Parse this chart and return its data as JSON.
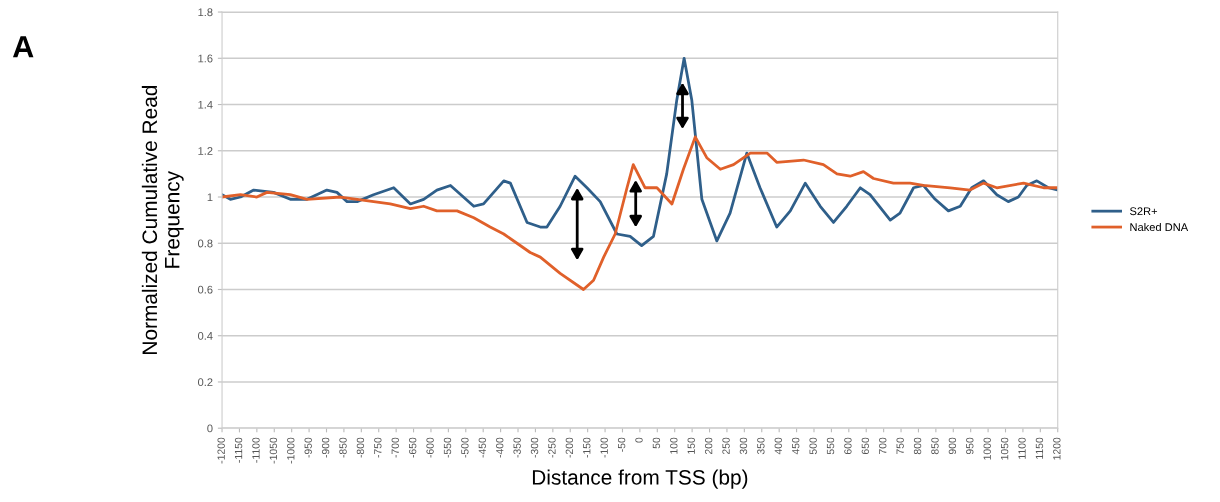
{
  "chart_data": {
    "type": "line",
    "xlabel": "Distance from TSS (bp)",
    "ylabel": "Normalized Cumulative Read\nFrequency",
    "annotations": [
      "A"
    ],
    "xlim": [
      -1200,
      1200
    ],
    "ylim": [
      0,
      1.8
    ],
    "xticks": [
      -1200,
      -1150,
      -1100,
      -1050,
      -1000,
      -950,
      -900,
      -850,
      -800,
      -750,
      -700,
      -650,
      -600,
      -550,
      -500,
      -450,
      -400,
      -350,
      -300,
      -250,
      -200,
      -150,
      -100,
      -50,
      0,
      50,
      100,
      150,
      200,
      250,
      300,
      350,
      400,
      450,
      500,
      550,
      600,
      650,
      700,
      750,
      800,
      850,
      900,
      950,
      1000,
      1050,
      1100,
      1150,
      1200
    ],
    "yticks": [
      0,
      0.2,
      0.4,
      0.6,
      0.8,
      1,
      1.2,
      1.4,
      1.6,
      1.8
    ],
    "grid": "y",
    "legend": "right",
    "line_style": "solid",
    "marker": "none",
    "series": [
      {
        "name": "S2R+",
        "color": "#2f5f8a",
        "x": [
          -1200,
          -1176,
          -1147,
          -1109,
          -1052,
          -1004,
          -956,
          -899,
          -870,
          -841,
          -812,
          -765,
          -707,
          -659,
          -621,
          -583,
          -544,
          -477,
          -449,
          -391,
          -372,
          -324,
          -286,
          -267,
          -229,
          -186,
          -152,
          -114,
          -66,
          -28,
          5,
          39,
          77,
          106,
          127,
          149,
          178,
          221,
          259,
          307,
          345,
          393,
          432,
          475,
          518,
          556,
          594,
          633,
          661,
          719,
          747,
          786,
          814,
          848,
          886,
          920,
          953,
          987,
          1025,
          1058,
          1087,
          1111,
          1140,
          1173,
          1200
        ],
        "values": [
          1.01,
          0.99,
          1.0,
          1.03,
          1.02,
          0.99,
          0.99,
          1.03,
          1.02,
          0.98,
          0.98,
          1.01,
          1.04,
          0.97,
          0.99,
          1.03,
          1.05,
          0.96,
          0.97,
          1.07,
          1.06,
          0.89,
          0.87,
          0.87,
          0.96,
          1.09,
          1.04,
          0.98,
          0.84,
          0.83,
          0.79,
          0.83,
          1.1,
          1.42,
          1.6,
          1.42,
          0.99,
          0.81,
          0.93,
          1.19,
          1.04,
          0.87,
          0.94,
          1.06,
          0.96,
          0.89,
          0.96,
          1.04,
          1.01,
          0.9,
          0.93,
          1.04,
          1.05,
          0.99,
          0.94,
          0.96,
          1.04,
          1.07,
          1.01,
          0.98,
          1.0,
          1.05,
          1.07,
          1.04,
          1.03
        ]
      },
      {
        "name": "Naked DNA",
        "color": "#e0602a",
        "x": [
          -1200,
          -1147,
          -1100,
          -1071,
          -1004,
          -956,
          -860,
          -812,
          -717,
          -659,
          -621,
          -583,
          -525,
          -477,
          -430,
          -391,
          -353,
          -315,
          -286,
          -229,
          -162,
          -133,
          -104,
          -71,
          -37,
          -19,
          15,
          49,
          92,
          125,
          159,
          192,
          231,
          269,
          317,
          365,
          393,
          470,
          527,
          566,
          604,
          642,
          671,
          728,
          776,
          814,
          891,
          948,
          987,
          1025,
          1102,
          1159,
          1200
        ],
        "values": [
          1.0,
          1.01,
          1.0,
          1.02,
          1.01,
          0.99,
          1.0,
          0.99,
          0.97,
          0.95,
          0.96,
          0.94,
          0.94,
          0.91,
          0.87,
          0.84,
          0.8,
          0.76,
          0.74,
          0.67,
          0.6,
          0.64,
          0.74,
          0.84,
          1.04,
          1.14,
          1.04,
          1.04,
          0.97,
          1.12,
          1.26,
          1.17,
          1.12,
          1.14,
          1.19,
          1.19,
          1.15,
          1.16,
          1.14,
          1.1,
          1.09,
          1.11,
          1.08,
          1.06,
          1.06,
          1.05,
          1.04,
          1.03,
          1.06,
          1.04,
          1.06,
          1.04,
          1.04
        ]
      }
    ]
  }
}
